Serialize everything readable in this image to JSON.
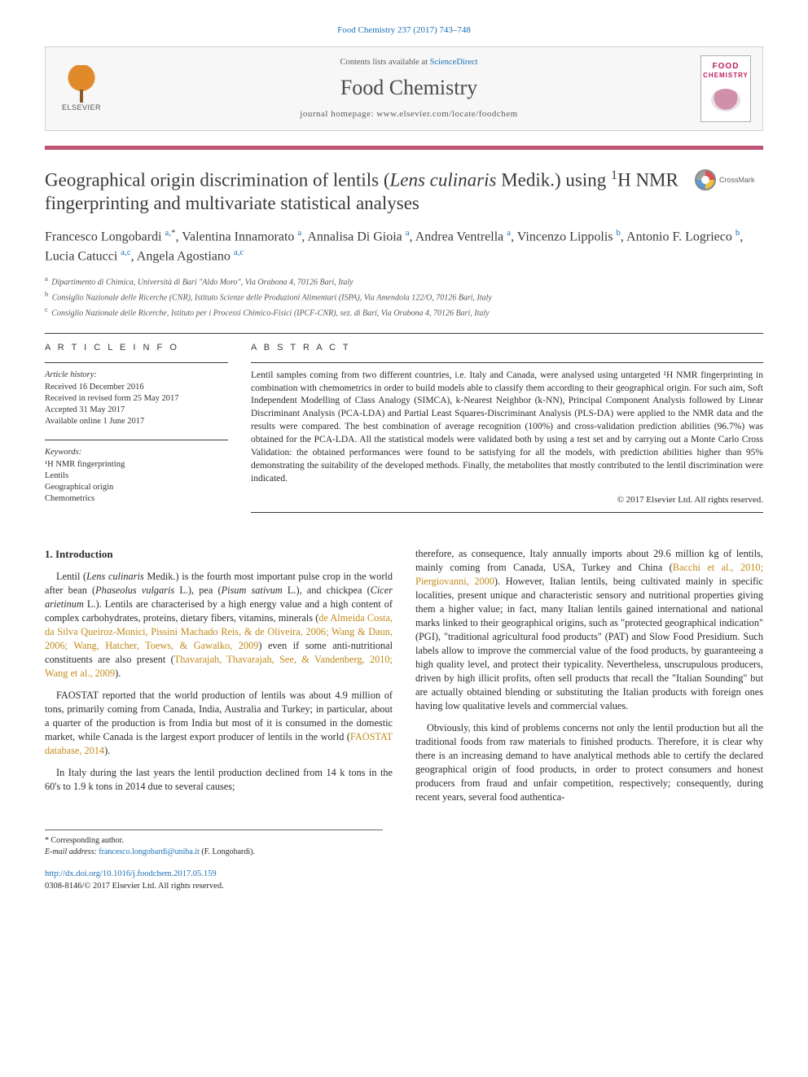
{
  "top_reference": {
    "journal_link_text": "Food Chemistry 237 (2017) 743–748",
    "journal_link_color": "#1a6fb5"
  },
  "header": {
    "publisher_logo_label": "ELSEVIER",
    "contents_prefix": "Contents lists available at ",
    "contents_link": "ScienceDirect",
    "journal_name": "Food Chemistry",
    "homepage_label": "journal homepage: ",
    "homepage_url": "www.elsevier.com/locate/foodchem",
    "cover_line1": "FOOD",
    "cover_line2": "CHEMISTRY"
  },
  "accent_color": "#bd5474",
  "title": {
    "html": "Geographical origin discrimination of lentils (<em>Lens culinaris</em> Medik.) using <sup>1</sup>H NMR fingerprinting and multivariate statistical analyses"
  },
  "crossmark_label": "CrossMark",
  "authors": [
    {
      "name": "Francesco Longobardi",
      "sup": "a,",
      "corr": true
    },
    {
      "name": "Valentina Innamorato",
      "sup": "a"
    },
    {
      "name": "Annalisa Di Gioia",
      "sup": "a"
    },
    {
      "name": "Andrea Ventrella",
      "sup": "a"
    },
    {
      "name": "Vincenzo Lippolis",
      "sup": "b"
    },
    {
      "name": "Antonio F. Logrieco",
      "sup": "b"
    },
    {
      "name": "Lucia Catucci",
      "sup": "a,c"
    },
    {
      "name": "Angela Agostiano",
      "sup": "a,c"
    }
  ],
  "affiliations": [
    {
      "key": "a",
      "text": "Dipartimento di Chimica, Università di Bari \"Aldo Moro\", Via Orabona 4, 70126 Bari, Italy"
    },
    {
      "key": "b",
      "text": "Consiglio Nazionale delle Ricerche (CNR), Istituto Scienze delle Produzioni Alimentari (ISPA), Via Amendola 122/O, 70126 Bari, Italy"
    },
    {
      "key": "c",
      "text": "Consiglio Nazionale delle Ricerche, Istituto per i Processi Chimico-Fisici (IPCF-CNR), sez. di Bari, Via Orabona 4, 70126 Bari, Italy"
    }
  ],
  "article_info": {
    "heading": "A R T I C L E   I N F O",
    "history_label": "Article history:",
    "history": [
      "Received 16 December 2016",
      "Received in revised form 25 May 2017",
      "Accepted 31 May 2017",
      "Available online 1 June 2017"
    ],
    "keywords_label": "Keywords:",
    "keywords": [
      "¹H NMR fingerprinting",
      "Lentils",
      "Geographical origin",
      "Chemometrics"
    ]
  },
  "abstract": {
    "heading": "A B S T R A C T",
    "text": "Lentil samples coming from two different countries, i.e. Italy and Canada, were analysed using untargeted ¹H NMR fingerprinting in combination with chemometrics in order to build models able to classify them according to their geographical origin. For such aim, Soft Independent Modelling of Class Analogy (SIMCA), k-Nearest Neighbor (k-NN), Principal Component Analysis followed by Linear Discriminant Analysis (PCA-LDA) and Partial Least Squares-Discriminant Analysis (PLS-DA) were applied to the NMR data and the results were compared. The best combination of average recognition (100%) and cross-validation prediction abilities (96.7%) was obtained for the PCA-LDA. All the statistical models were validated both by using a test set and by carrying out a Monte Carlo Cross Validation: the obtained performances were found to be satisfying for all the models, with prediction abilities higher than 95% demonstrating the suitability of the developed methods. Finally, the metabolites that mostly contributed to the lentil discrimination were indicated.",
    "copyright": "© 2017 Elsevier Ltd. All rights reserved."
  },
  "body": {
    "section1_heading": "1. Introduction",
    "p1_a": "Lentil (",
    "p1_b": "Lens culinaris",
    "p1_c": " Medik.) is the fourth most important pulse crop in the world after bean (",
    "p1_d": "Phaseolus vulgaris",
    "p1_e": " L.), pea (",
    "p1_f": "Pisum sativum",
    "p1_g": " L.), and chickpea (",
    "p1_h": "Cicer arietinum",
    "p1_i": " L.). Lentils are characterised by a high energy value and a high content of complex carbohydrates, proteins, dietary fibers, vitamins, minerals (",
    "p1_ref1": "de Almeida Costa, da Silva Queiroz-Monici, Pissini Machado Reis, & de Oliveira, 2006; Wang & Daun, 2006; Wang, Hatcher, Toews, & Gawalko, 2009",
    "p1_j": ") even if some anti-nutritional constituents are also present (",
    "p1_ref2": "Thavarajah, Thavarajah, See, & Vandenberg, 2010; Wang et al., 2009",
    "p1_k": ").",
    "p2_a": "FAOSTAT reported that the world production of lentils was about 4.9 million of tons, primarily coming from Canada, India, Australia and Turkey; in particular, about a quarter of the production is from India but most of it is consumed in the domestic market, while Canada is the largest export producer of lentils in the world (",
    "p2_ref": "FAOSTAT database, 2014",
    "p2_b": ").",
    "p3": "In Italy during the last years the lentil production declined from 14 k tons in the 60's to 1.9 k tons in 2014 due to several causes;",
    "p4_a": "therefore, as consequence, Italy annually imports about 29.6 million kg of lentils, mainly coming from Canada, USA, Turkey and China (",
    "p4_ref": "Bacchi et al., 2010; Piergiovanni, 2000",
    "p4_b": "). However, Italian lentils, being cultivated mainly in specific localities, present unique and characteristic sensory and nutritional properties giving them a higher value; in fact, many Italian lentils gained international and national marks linked to their geographical origins, such as \"protected geographical indication\" (PGI), \"traditional agricultural food products\" (PAT) and Slow Food Presidium. Such labels allow to improve the commercial value of the food products, by guaranteeing a high quality level, and protect their typicality. Nevertheless, unscrupulous producers, driven by high illicit profits, often sell products that recall the \"Italian Sounding\" but are actually obtained blending or substituting the Italian products with foreign ones having low qualitative levels and commercial values.",
    "p5": "Obviously, this kind of problems concerns not only the lentil production but all the traditional foods from raw materials to finished products. Therefore, it is clear why there is an increasing demand to have analytical methods able to certify the declared geographical origin of food products, in order to protect consumers and honest producers from fraud and unfair competition, respectively; consequently, during recent years, several food authentica-"
  },
  "footnotes": {
    "corr_label": "* Corresponding author.",
    "email_label": "E-mail address: ",
    "email": "francesco.longobardi@uniba.it",
    "email_name": " (F. Longobardi)."
  },
  "footer": {
    "doi_url": "http://dx.doi.org/10.1016/j.foodchem.2017.05.159",
    "issn_line": "0308-8146/© 2017 Elsevier Ltd. All rights reserved."
  },
  "colors": {
    "link": "#1a6fb5",
    "ref": "#c28a1a",
    "text": "#2b2b2b",
    "rule": "#bd5474"
  }
}
